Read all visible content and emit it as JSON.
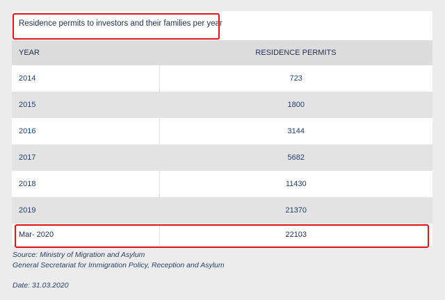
{
  "title": "Residence permits to investors and their families per year",
  "table": {
    "headers": {
      "year": "YEAR",
      "permits": "RESIDENCE PERMITS"
    },
    "rows": [
      {
        "year": "2014",
        "permits": "723"
      },
      {
        "year": "2015",
        "permits": "1800"
      },
      {
        "year": "2016",
        "permits": "3144"
      },
      {
        "year": "2017",
        "permits": "5682"
      },
      {
        "year": "2018",
        "permits": "11430"
      },
      {
        "year": "2019",
        "permits": "21370"
      },
      {
        "year": "Mar- 2020",
        "permits": "22103"
      }
    ]
  },
  "footer": {
    "source": "Source: Ministry of Migration and Asylum",
    "secretariat": "General Secretariat for Immigration Policy, Reception and Asylum",
    "date": "Date: 31.03.2020"
  },
  "colors": {
    "highlight": "#e0121b",
    "text": "#1f2d4d",
    "stripe": "#e3e3e3",
    "header_bg": "#dcdcdc",
    "page_bg": "#ececec"
  }
}
